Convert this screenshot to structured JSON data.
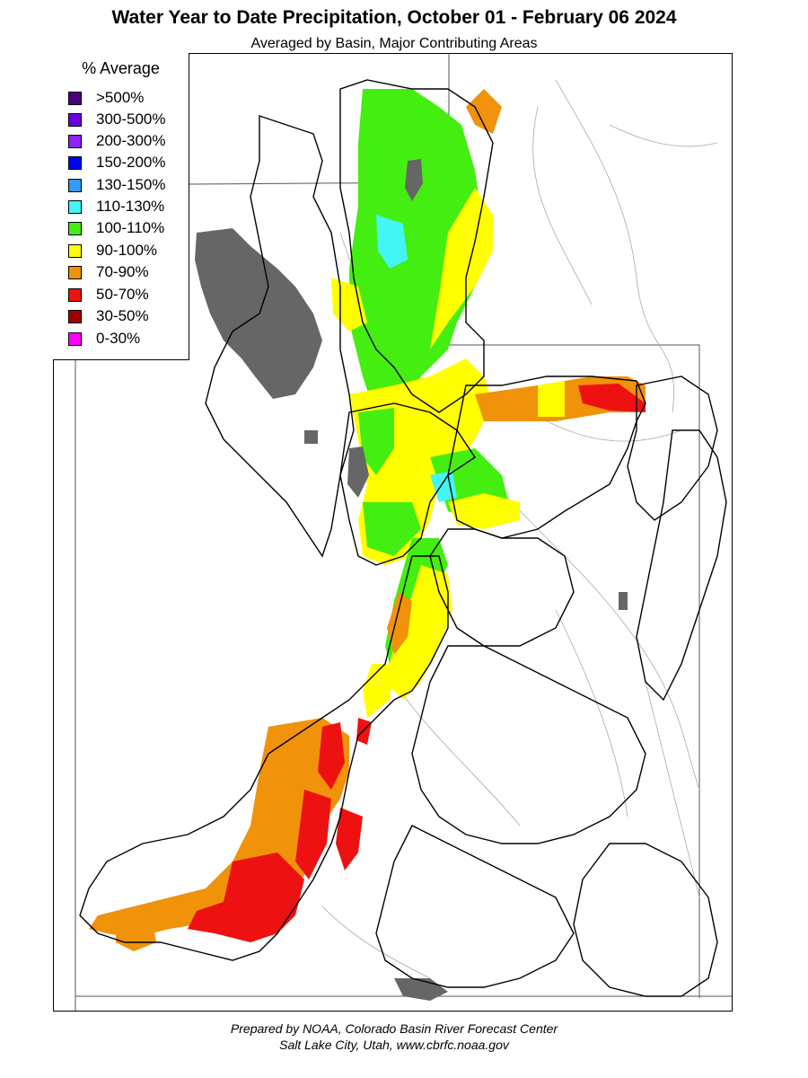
{
  "title": "Water Year to Date Precipitation, October 01  - February 06 2024",
  "subtitle": "Averaged by Basin, Major Contributing Areas",
  "legend": {
    "title": "% Average",
    "items": [
      {
        "label": ">500%",
        "color": "#4b0082"
      },
      {
        "label": "300-500%",
        "color": "#6a00e0"
      },
      {
        "label": "200-300%",
        "color": "#8b22ff"
      },
      {
        "label": "150-200%",
        "color": "#0000ff"
      },
      {
        "label": "130-150%",
        "color": "#3399ff"
      },
      {
        "label": "110-130%",
        "color": "#44f5f5"
      },
      {
        "label": "100-110%",
        "color": "#44ee11"
      },
      {
        "label": "90-100%",
        "color": "#ffff00"
      },
      {
        "label": "70-90%",
        "color": "#f0920a"
      },
      {
        "label": "50-70%",
        "color": "#ee1111"
      },
      {
        "label": "30-50%",
        "color": "#a00000"
      },
      {
        "label": "0-30%",
        "color": "#ff00ff"
      }
    ]
  },
  "colors": {
    "lake": "#666666",
    "border": "#000000",
    "river": "#aaaaaa"
  },
  "footer": {
    "line1": "Prepared by NOAA, Colorado Basin River Forecast Center",
    "line2": "Salt Lake City, Utah, www.cbrfc.noaa.gov"
  }
}
